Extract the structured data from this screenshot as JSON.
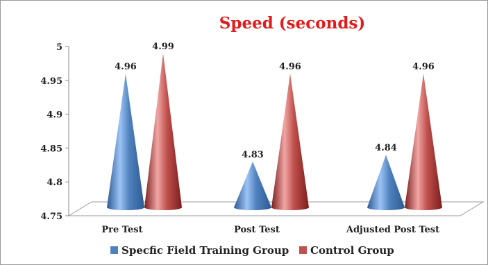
{
  "chart_data": {
    "type": "bar",
    "title": "Speed (seconds)",
    "xlabel": "",
    "ylabel": "",
    "categories": [
      "Pre Test",
      "Post Test",
      "Adjusted Post Test"
    ],
    "series": [
      {
        "name": "Specfic Field Training Group",
        "values": [
          4.96,
          4.83,
          4.84
        ],
        "color": "#4f81bd"
      },
      {
        "name": "Control Group",
        "values": [
          4.99,
          4.96,
          4.96
        ],
        "color": "#c0504d"
      }
    ],
    "ylim": [
      4.75,
      5
    ],
    "yticks": [
      "4.75",
      "4.8",
      "4.85",
      "4.9",
      "4.95",
      "5"
    ],
    "bar_shape": "cone",
    "grid": false,
    "legend_position": "bottom",
    "title_color": "#e31b1b"
  }
}
